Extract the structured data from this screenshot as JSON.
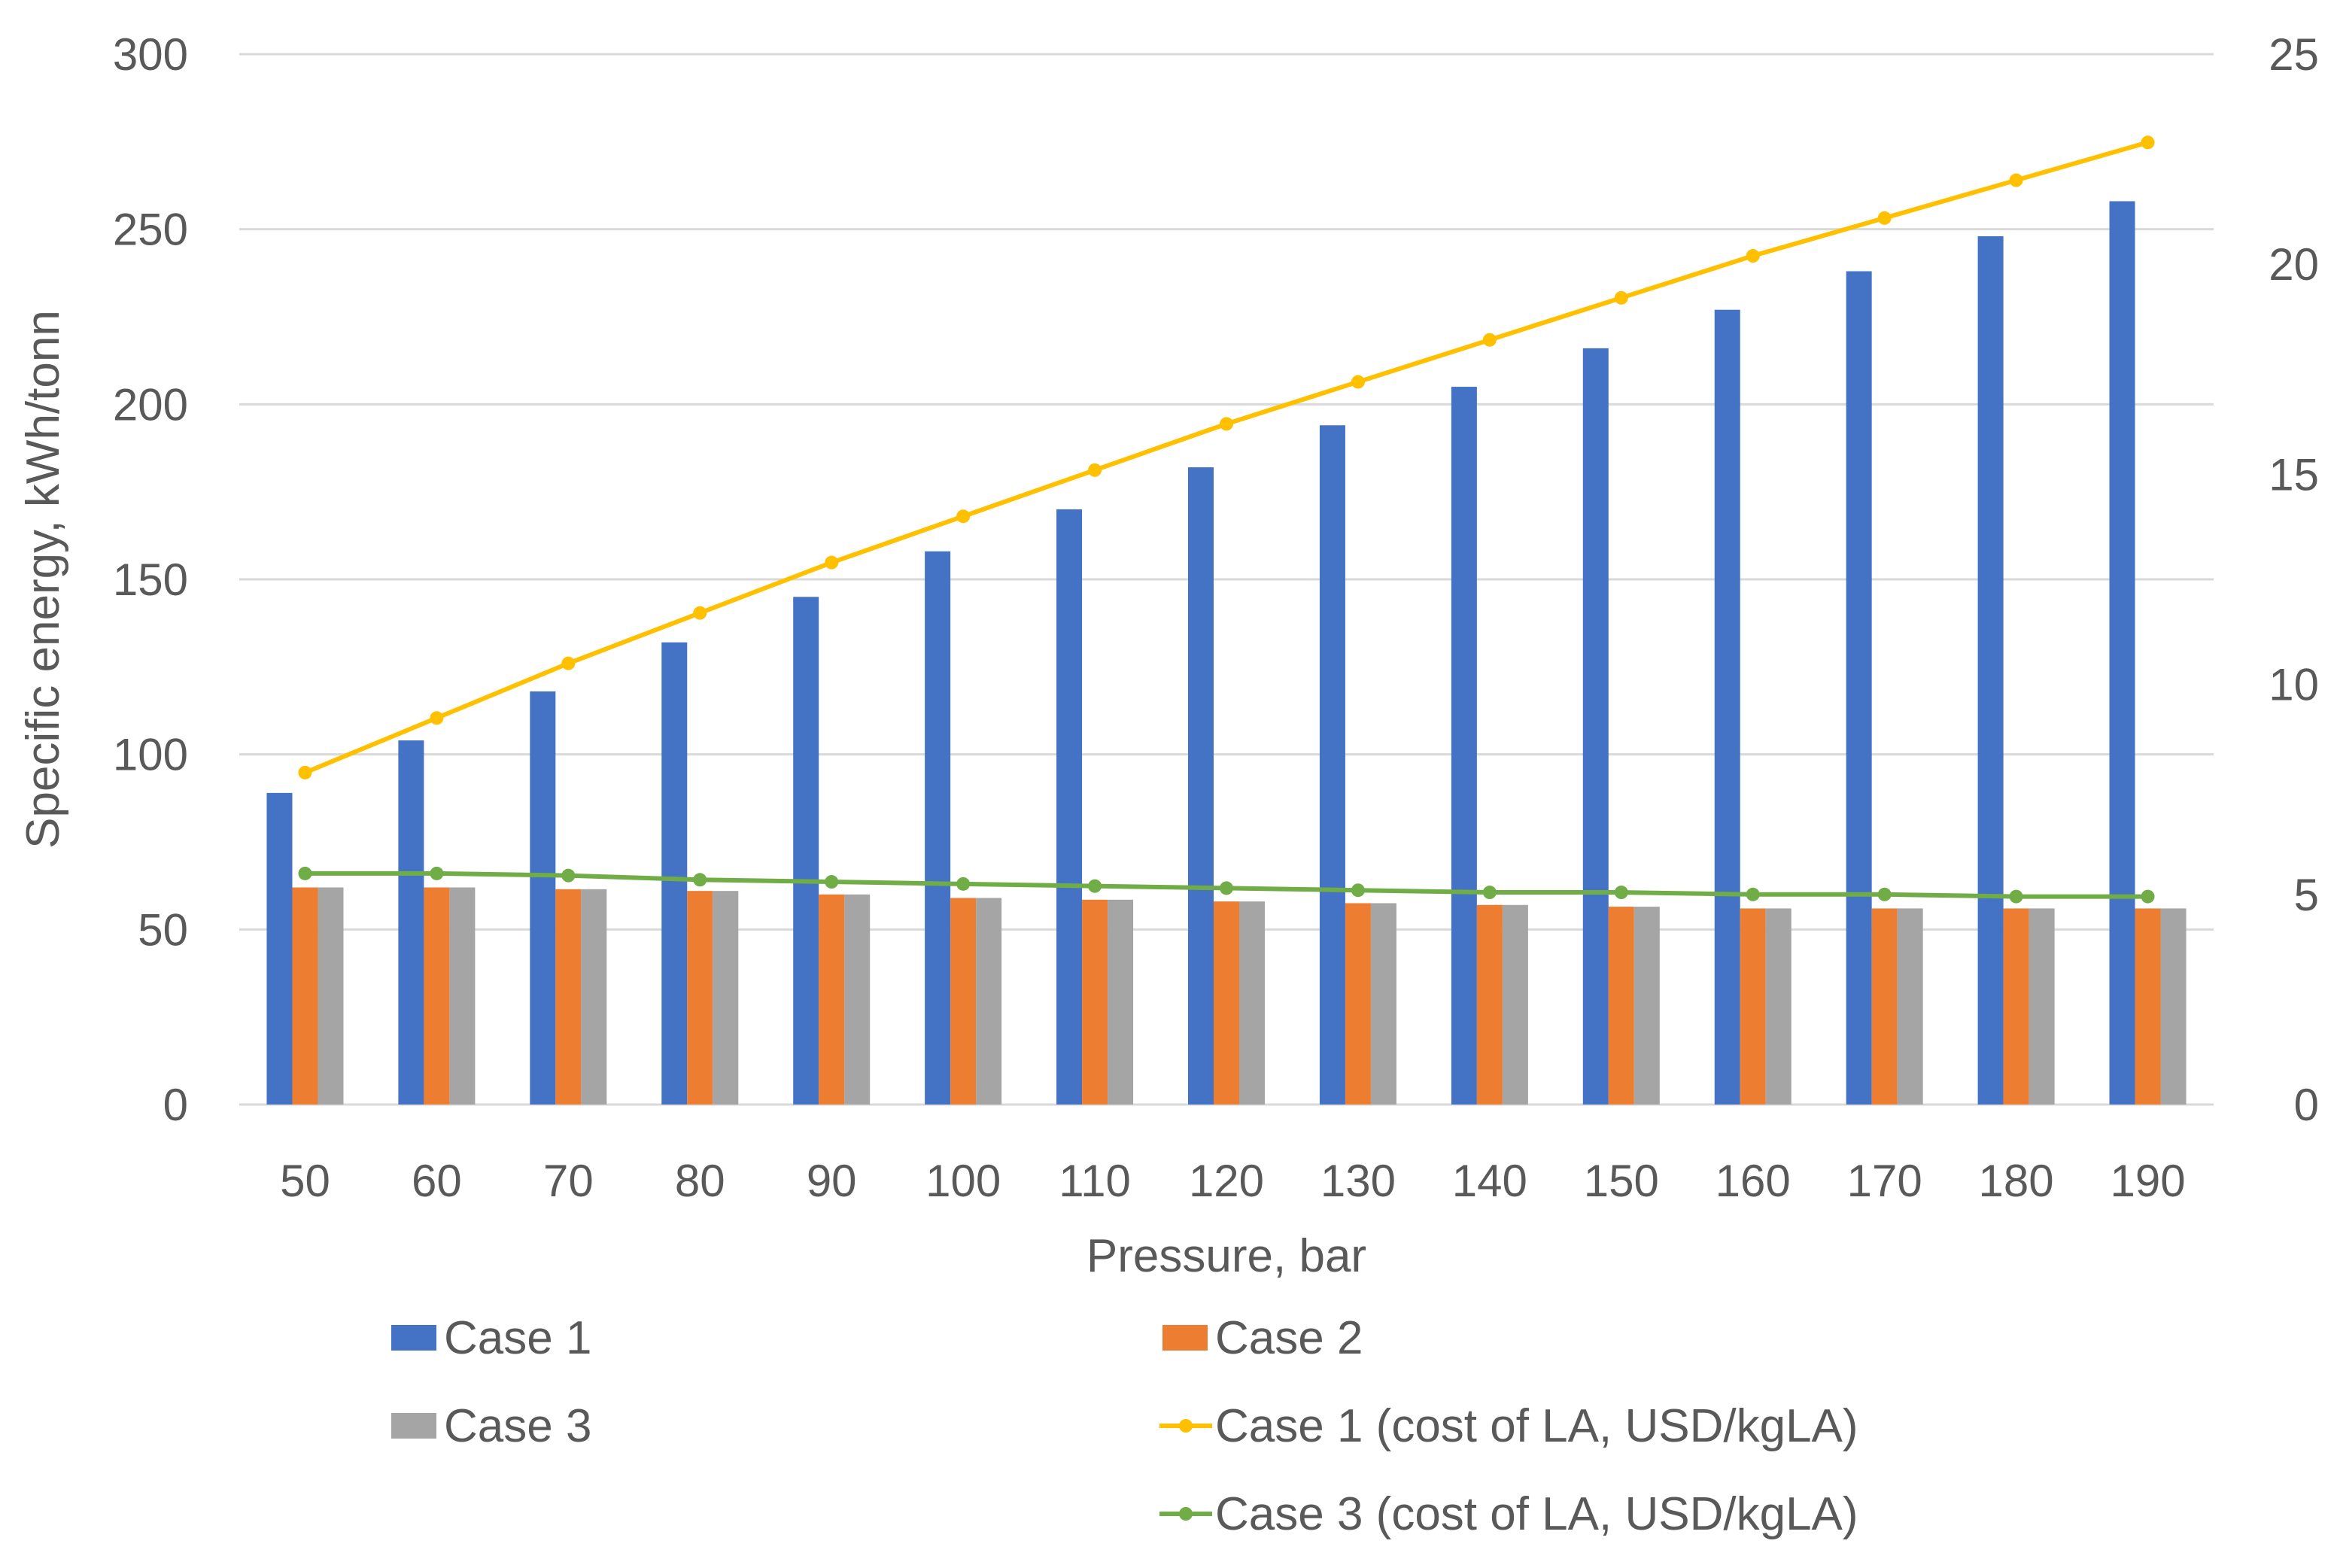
{
  "chart_data": {
    "type": "bar",
    "title": "",
    "xlabel": "Pressure, bar",
    "ylabel": "Specific energy, kWh/tonn",
    "categories": [
      "50",
      "60",
      "70",
      "80",
      "90",
      "100",
      "110",
      "120",
      "130",
      "140",
      "150",
      "160",
      "170",
      "180",
      "190"
    ],
    "ylim": [
      0,
      300
    ],
    "y_ticks": [
      "0",
      "50",
      "100",
      "150",
      "200",
      "250",
      "300"
    ],
    "y2lim": [
      0,
      25
    ],
    "y2_ticks": [
      "0",
      "5",
      "10",
      "15",
      "20",
      "25"
    ],
    "grid": true,
    "legend_position": "bottom",
    "series": [
      {
        "name": "Case 1",
        "kind": "bar",
        "axis": "left",
        "color": "#4472C4",
        "values": [
          89,
          104,
          118,
          132,
          145,
          158,
          170,
          182,
          194,
          205,
          216,
          227,
          238,
          248,
          258
        ]
      },
      {
        "name": "Case 2",
        "kind": "bar",
        "axis": "left",
        "color": "#ED7D31",
        "values": [
          62,
          62,
          61.5,
          61,
          60,
          59,
          58.5,
          58,
          57.5,
          57,
          56.5,
          56,
          56,
          56,
          56
        ]
      },
      {
        "name": "Case 3",
        "kind": "bar",
        "axis": "left",
        "color": "#A5A5A5",
        "values": [
          62,
          62,
          61.5,
          61,
          60,
          59,
          58.5,
          58,
          57.5,
          57,
          56.5,
          56,
          56,
          56,
          56
        ]
      },
      {
        "name": "Case 1 (cost of LA, USD/kgLA)",
        "kind": "line",
        "axis": "right",
        "color": "#FFC000",
        "values": [
          7.9,
          9.2,
          10.5,
          11.7,
          12.9,
          14.0,
          15.1,
          16.2,
          17.2,
          18.2,
          19.2,
          20.2,
          21.1,
          22.0,
          22.9
        ]
      },
      {
        "name": "Case 3 (cost of LA, USD/kgLA)",
        "kind": "line",
        "axis": "right",
        "color": "#70AD47",
        "values": [
          5.5,
          5.5,
          5.45,
          5.35,
          5.3,
          5.25,
          5.2,
          5.15,
          5.1,
          5.05,
          5.05,
          5.0,
          5.0,
          4.95,
          4.95
        ]
      }
    ]
  }
}
